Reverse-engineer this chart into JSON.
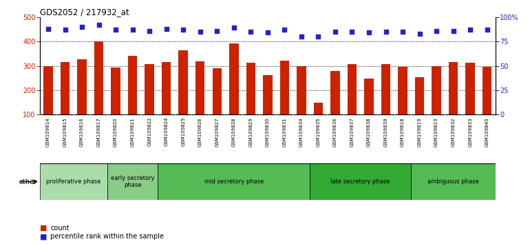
{
  "title": "GDS2052 / 217932_at",
  "samples": [
    "GSM109814",
    "GSM109815",
    "GSM109816",
    "GSM109817",
    "GSM109820",
    "GSM109821",
    "GSM109822",
    "GSM109824",
    "GSM109825",
    "GSM109826",
    "GSM109827",
    "GSM109828",
    "GSM109829",
    "GSM109830",
    "GSM109831",
    "GSM109834",
    "GSM109835",
    "GSM109836",
    "GSM109837",
    "GSM109838",
    "GSM109839",
    "GSM109818",
    "GSM109819",
    "GSM109823",
    "GSM109832",
    "GSM109833",
    "GSM109840"
  ],
  "counts": [
    300,
    316,
    326,
    400,
    292,
    342,
    307,
    315,
    363,
    318,
    289,
    392,
    313,
    261,
    320,
    298,
    148,
    279,
    307,
    248,
    307,
    295,
    253,
    300,
    316,
    313,
    295
  ],
  "percentiles": [
    88,
    87,
    90,
    92,
    87,
    87,
    86,
    88,
    87,
    85,
    86,
    89,
    85,
    84,
    87,
    80,
    80,
    85,
    85,
    84,
    85,
    85,
    83,
    86,
    86,
    87,
    87
  ],
  "bar_color": "#cc2200",
  "dot_color": "#2222cc",
  "ylim_left": [
    100,
    500
  ],
  "ylim_right": [
    0,
    100
  ],
  "yticks_left": [
    100,
    200,
    300,
    400,
    500
  ],
  "yticks_right": [
    0,
    25,
    50,
    75,
    100
  ],
  "ytick_labels_right": [
    "0",
    "25",
    "50",
    "75",
    "100%"
  ],
  "groups": [
    {
      "label": "proliferative phase",
      "start": 0,
      "end": 4
    },
    {
      "label": "early secretory\nphase",
      "start": 4,
      "end": 7
    },
    {
      "label": "mid secretory phase",
      "start": 7,
      "end": 16
    },
    {
      "label": "late secretory phase",
      "start": 16,
      "end": 22
    },
    {
      "label": "ambiguous phase",
      "start": 22,
      "end": 27
    }
  ],
  "group_colors": [
    "#aaddaa",
    "#88cc88",
    "#55bb55",
    "#33aa33",
    "#55bb55"
  ],
  "legend_count_label": "count",
  "legend_pct_label": "percentile rank within the sample",
  "other_label": "other",
  "plot_bg": "#ffffff",
  "tick_area_bg": "#d0d0d0",
  "fig_bg": "#ffffff"
}
